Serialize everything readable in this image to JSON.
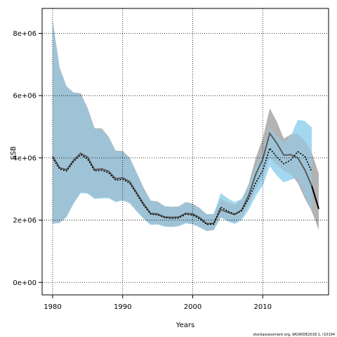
{
  "chart_data": {
    "type": "line",
    "title": "",
    "xlabel": "Years",
    "ylabel": "SSB",
    "xlim": [
      1978.5,
      2019.4
    ],
    "ylim": [
      -400000,
      8800000
    ],
    "x_ticks": [
      1980,
      1990,
      2000,
      2010
    ],
    "x_tick_labels": [
      "1980",
      "1990",
      "2000",
      "2010"
    ],
    "y_ticks": [
      0,
      2000000,
      4000000,
      6000000,
      8000000
    ],
    "y_tick_labels": [
      "0e+00",
      "2e+06",
      "4e+06",
      "6e+06",
      "8e+06"
    ],
    "grid": true,
    "footer": "stockassessment.org, WGWIDE2018.1, r10194",
    "colors": {
      "gray_band": "#b3b3b3",
      "blue_band": "#a4d8f0",
      "overlap": "#9fc3d6",
      "gray_line": "#5a5a5a",
      "dotted_line": "#000000"
    },
    "series": [
      {
        "role": "retro-gray",
        "x": [
          1980,
          1981,
          1982,
          1983,
          1984,
          1985,
          1986,
          1987,
          1988,
          1989,
          1990,
          1991,
          1992,
          1993,
          1994,
          1995,
          1996,
          1997,
          1998,
          1999,
          2000,
          2001,
          2002,
          2003,
          2004,
          2005,
          2006,
          2007,
          2008,
          2009,
          2010,
          2011,
          2012,
          2013,
          2014,
          2015,
          2016,
          2017,
          2018
        ],
        "values": [
          4050000,
          3680000,
          3620000,
          3930000,
          4150000,
          4020000,
          3620000,
          3650000,
          3570000,
          3330000,
          3360000,
          3240000,
          2880000,
          2520000,
          2220000,
          2200000,
          2100000,
          2090000,
          2100000,
          2220000,
          2200000,
          2080000,
          1890000,
          1900000,
          2340000,
          2250000,
          2180000,
          2330000,
          2800000,
          3470000,
          3960000,
          4790000,
          4470000,
          4090000,
          4100000,
          4000000,
          3620000,
          3100000,
          2360000
        ],
        "lower": [
          1900000,
          1920000,
          2120000,
          2550000,
          2890000,
          2880000,
          2700000,
          2720000,
          2730000,
          2600000,
          2650000,
          2560000,
          2300000,
          2050000,
          1860000,
          1870000,
          1800000,
          1790000,
          1810000,
          1920000,
          1870000,
          1770000,
          1650000,
          1680000,
          2080000,
          1980000,
          1920000,
          2070000,
          2480000,
          2980000,
          3380000,
          4000000,
          3780000,
          3580000,
          3490000,
          3200000,
          2700000,
          2280000,
          1690000
        ],
        "upper": [
          8420000,
          6900000,
          6290000,
          6100000,
          6080000,
          5600000,
          4950000,
          4950000,
          4680000,
          4230000,
          4220000,
          4010000,
          3530000,
          3040000,
          2630000,
          2600000,
          2450000,
          2430000,
          2440000,
          2580000,
          2530000,
          2390000,
          2190000,
          2200000,
          2690000,
          2580000,
          2490000,
          2650000,
          3170000,
          4000000,
          4620000,
          5590000,
          5170000,
          4620000,
          4750000,
          4770000,
          4550000,
          4180000,
          3490000
        ]
      },
      {
        "role": "retro-blue",
        "x": [
          1980,
          1981,
          1982,
          1983,
          1984,
          1985,
          1986,
          1987,
          1988,
          1989,
          1990,
          1991,
          1992,
          1993,
          1994,
          1995,
          1996,
          1997,
          1998,
          1999,
          2000,
          2001,
          2002,
          2003,
          2004,
          2005,
          2006,
          2007,
          2008,
          2009,
          2010,
          2011,
          2012,
          2013,
          2014,
          2015,
          2016,
          2017
        ],
        "values": [
          4000000,
          3640000,
          3580000,
          3880000,
          4100000,
          3960000,
          3580000,
          3600000,
          3520000,
          3280000,
          3310000,
          3190000,
          2840000,
          2480000,
          2190000,
          2170000,
          2080000,
          2060000,
          2070000,
          2190000,
          2160000,
          2040000,
          1860000,
          1870000,
          2420000,
          2290000,
          2190000,
          2300000,
          2700000,
          3200000,
          3600000,
          4310000,
          4030000,
          3810000,
          3930000,
          4200000,
          4050000,
          3560000
        ],
        "lower": [
          1880000,
          1910000,
          2100000,
          2530000,
          2870000,
          2850000,
          2680000,
          2700000,
          2700000,
          2580000,
          2630000,
          2540000,
          2280000,
          2040000,
          1850000,
          1860000,
          1790000,
          1780000,
          1800000,
          1900000,
          1860000,
          1770000,
          1660000,
          1700000,
          2100000,
          1960000,
          1880000,
          2000000,
          2330000,
          2780000,
          3110000,
          3730000,
          3440000,
          3210000,
          3300000,
          3360000,
          2820000,
          2300000
        ],
        "upper": [
          8400000,
          6880000,
          6270000,
          6090000,
          6050000,
          5570000,
          4920000,
          4920000,
          4650000,
          4200000,
          4200000,
          3990000,
          3510000,
          3020000,
          2610000,
          2580000,
          2440000,
          2420000,
          2430000,
          2560000,
          2510000,
          2380000,
          2180000,
          2190000,
          2870000,
          2700000,
          2580000,
          2690000,
          3140000,
          3700000,
          4150000,
          4960000,
          4700000,
          4490000,
          4700000,
          5220000,
          5190000,
          4980000
        ]
      }
    ]
  }
}
